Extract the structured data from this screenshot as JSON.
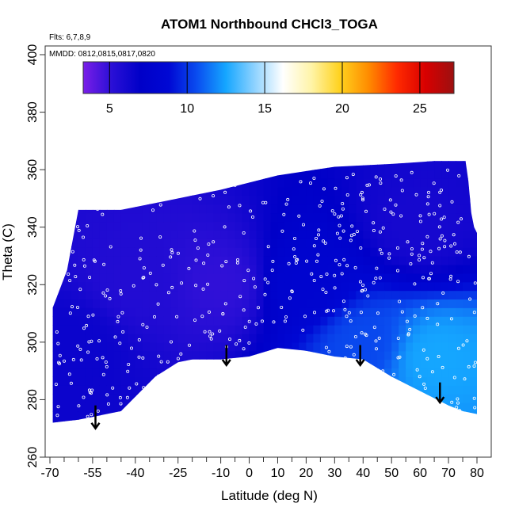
{
  "chart_data": {
    "type": "heatmap",
    "title": "ATOM1 Northbound CHCl3_TOGA",
    "xlabel": "Latitude (deg N)",
    "ylabel": "Theta (C)",
    "flights_label": "Flts: 6,7,8,9",
    "dates_label": "MMDD: 0812,0815,0817,0820",
    "xlim": [
      -70,
      85
    ],
    "ylim": [
      260,
      402
    ],
    "x_major_ticks": [
      -70,
      -55,
      -40,
      -25,
      -10,
      0,
      10,
      20,
      30,
      40,
      50,
      60,
      70,
      80
    ],
    "x_minor_ticks": [
      -65,
      -60,
      -50,
      -45,
      -35,
      -30,
      -20,
      -15,
      -5,
      5,
      15,
      25,
      35,
      45,
      55,
      65,
      75
    ],
    "y_ticks": [
      260,
      280,
      300,
      320,
      340,
      360,
      380,
      400
    ],
    "colorbar": {
      "min": 3.3,
      "max": 27.2,
      "ticks": [
        5,
        10,
        15,
        20,
        25
      ],
      "colors": [
        "#7a1ee8",
        "#2a0fd6",
        "#0000c8",
        "#0008d4",
        "#0a4ef0",
        "#15a6ff",
        "#8dd2ff",
        "#ffffff",
        "#fff4a8",
        "#ffd21e",
        "#ff8c00",
        "#ff2a00",
        "#d80000",
        "#9c1010"
      ]
    },
    "upper_boundary": [
      [
        -69,
        312
      ],
      [
        -64,
        325
      ],
      [
        -60,
        346
      ],
      [
        -45,
        346
      ],
      [
        -30,
        349
      ],
      [
        -10,
        353
      ],
      [
        10,
        358
      ],
      [
        30,
        361
      ],
      [
        50,
        362
      ],
      [
        65,
        363
      ],
      [
        76,
        363
      ],
      [
        77,
        356
      ],
      [
        78,
        345
      ],
      [
        79,
        340
      ],
      [
        80,
        338
      ]
    ],
    "lower_boundary": [
      [
        80,
        275
      ],
      [
        75,
        276
      ],
      [
        70,
        278
      ],
      [
        50,
        288
      ],
      [
        40,
        294
      ],
      [
        30,
        295
      ],
      [
        20,
        297
      ],
      [
        10,
        298
      ],
      [
        0,
        295
      ],
      [
        -10,
        294
      ],
      [
        -20,
        294
      ],
      [
        -25,
        293
      ],
      [
        -33,
        288
      ],
      [
        -45,
        276
      ],
      [
        -55,
        274
      ],
      [
        -60,
        273
      ],
      [
        -69,
        272
      ]
    ],
    "region_values": [
      {
        "lon_lat": [
          -60,
          300
        ],
        "value": 6.5
      },
      {
        "lon_lat": [
          -40,
          320
        ],
        "value": 5.5
      },
      {
        "lon_lat": [
          -10,
          320
        ],
        "value": 5.0
      },
      {
        "lon_lat": [
          20,
          320
        ],
        "value": 8.0
      },
      {
        "lon_lat": [
          40,
          300
        ],
        "value": 10.5
      },
      {
        "lon_lat": [
          65,
          295
        ],
        "value": 12.5
      },
      {
        "lon_lat": [
          60,
          340
        ],
        "value": 6.0
      }
    ],
    "arrows": [
      {
        "lat": -54,
        "theta_top": 278,
        "theta_bottom": 270
      },
      {
        "lat": -8,
        "theta_top": 299,
        "theta_bottom": 292
      },
      {
        "lat": 39,
        "theta_top": 299,
        "theta_bottom": 292
      },
      {
        "lat": 67,
        "theta_top": 286,
        "theta_bottom": 279
      }
    ]
  }
}
